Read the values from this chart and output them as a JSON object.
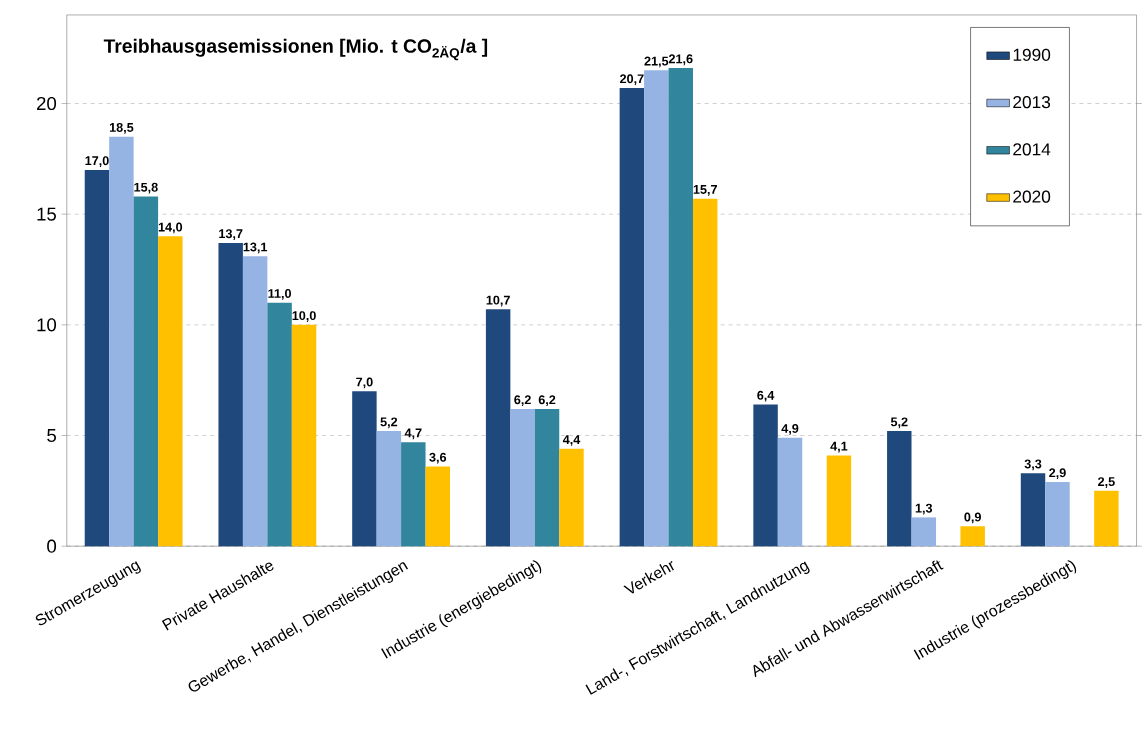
{
  "chart_data": {
    "type": "bar",
    "title": "Treibhausgasemissionen [Mio. t CO$_{2ÄQ}$/a ]",
    "categories": [
      "Stromerzeugung",
      "Private Haushalte",
      "Gewerbe, Handel, Dienstleistungen",
      "Industrie (energiebedingt)",
      "Verkehr",
      "Land-, Forstwirtschaft, Landnutzung",
      "Abfall- und Abwasserwirtschaft",
      "Industrie (prozessbedingt)"
    ],
    "series": [
      {
        "name": "1990",
        "color": "#1f497d",
        "values": [
          17.0,
          13.7,
          7.0,
          10.7,
          20.7,
          6.4,
          5.2,
          3.3
        ],
        "value_labels": [
          "17,0",
          "13,7",
          "7,0",
          "10,7",
          "20,7",
          "6,4",
          "5,2",
          "3,3"
        ]
      },
      {
        "name": "2013",
        "color": "#95b3e3",
        "values": [
          18.5,
          13.1,
          5.2,
          6.2,
          21.5,
          4.9,
          1.3,
          2.9
        ],
        "value_labels": [
          "18,5",
          "13,1",
          "5,2",
          "6,2",
          "21,5",
          "4,9",
          "1,3",
          "2,9"
        ]
      },
      {
        "name": "2014",
        "color": "#31859c",
        "values": [
          15.8,
          11.0,
          4.7,
          6.2,
          21.6,
          null,
          null,
          null
        ],
        "value_labels": [
          "15,8",
          "11,0",
          "4,7",
          "6,2",
          "21,6",
          null,
          null,
          null
        ]
      },
      {
        "name": "2020",
        "color": "#ffc000",
        "values": [
          14.0,
          10.0,
          3.6,
          4.4,
          15.7,
          4.1,
          0.9,
          2.5
        ],
        "value_labels": [
          "14,0",
          "10,0",
          "3,6",
          "4,4",
          "15,7",
          "4,1",
          "0,9",
          "2,5"
        ]
      }
    ],
    "ylim": [
      0,
      24
    ],
    "yticks": [
      0,
      5,
      10,
      15,
      20
    ],
    "grid": "y",
    "legend": "top right"
  }
}
